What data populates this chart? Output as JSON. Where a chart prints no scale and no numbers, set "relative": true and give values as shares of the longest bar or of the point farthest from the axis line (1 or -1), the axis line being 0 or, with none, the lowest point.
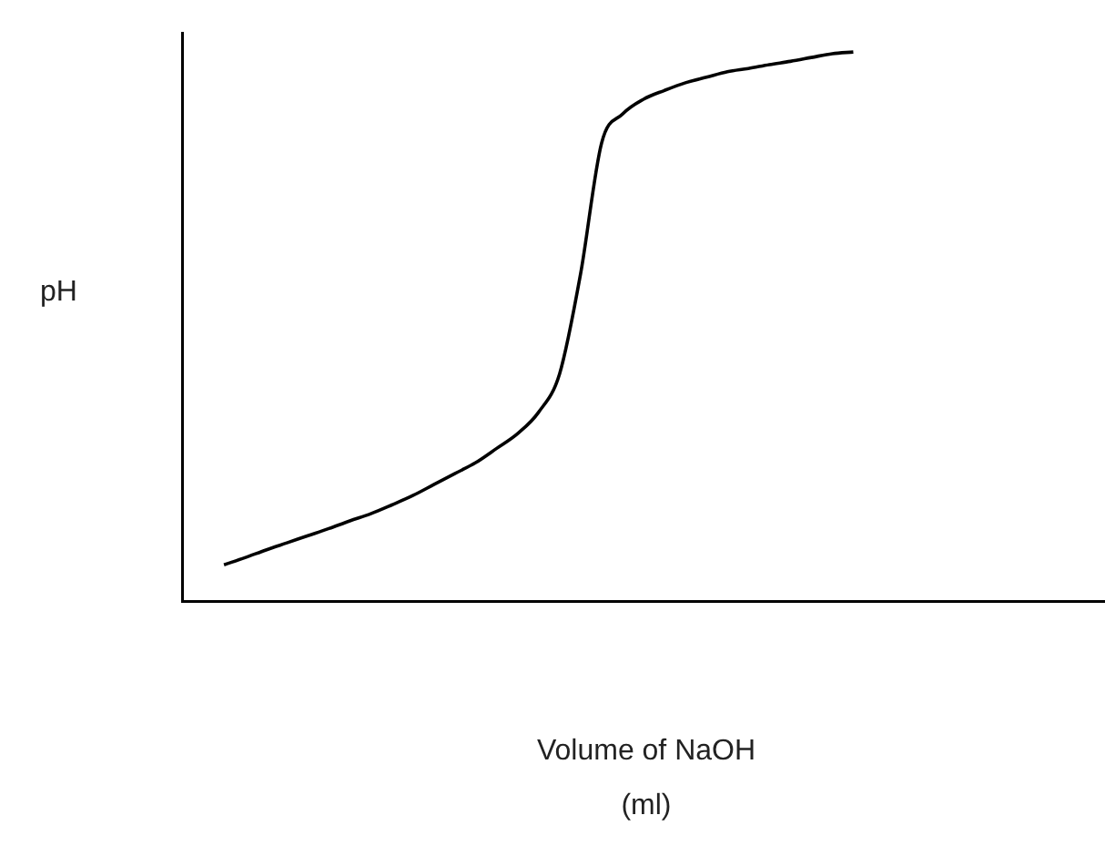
{
  "chart_data": {
    "type": "line",
    "relative": true,
    "xlabel": "Volume of NaOH\n(ml)",
    "ylabel": "pH",
    "color": "#000000",
    "marker": "none",
    "line_style": "solid",
    "grid": false,
    "legend": false,
    "categories": [
      null,
      null,
      null,
      null,
      null,
      null,
      null,
      null,
      null,
      null,
      null,
      null,
      null,
      null,
      null,
      null,
      null,
      null,
      null,
      null,
      null,
      null,
      null,
      null,
      null,
      null,
      null,
      null,
      null,
      null,
      null,
      null,
      null,
      null,
      null,
      null,
      null,
      null,
      null,
      null,
      null,
      null,
      null,
      null,
      null
    ],
    "values": [
      null,
      null,
      0.066,
      0.079,
      0.093,
      0.106,
      0.119,
      0.132,
      0.146,
      0.159,
      0.175,
      0.192,
      0.212,
      0.232,
      0.252,
      0.278,
      0.305,
      0.344,
      0.414,
      0.596,
      0.834,
      0.887,
      0.914,
      0.93,
      0.944,
      0.954,
      0.964,
      0.97,
      0.977,
      0.983,
      0.99,
      0.997,
      1,
      null,
      null,
      null,
      null,
      null,
      null,
      null,
      null,
      null,
      null,
      null,
      null
    ]
  }
}
